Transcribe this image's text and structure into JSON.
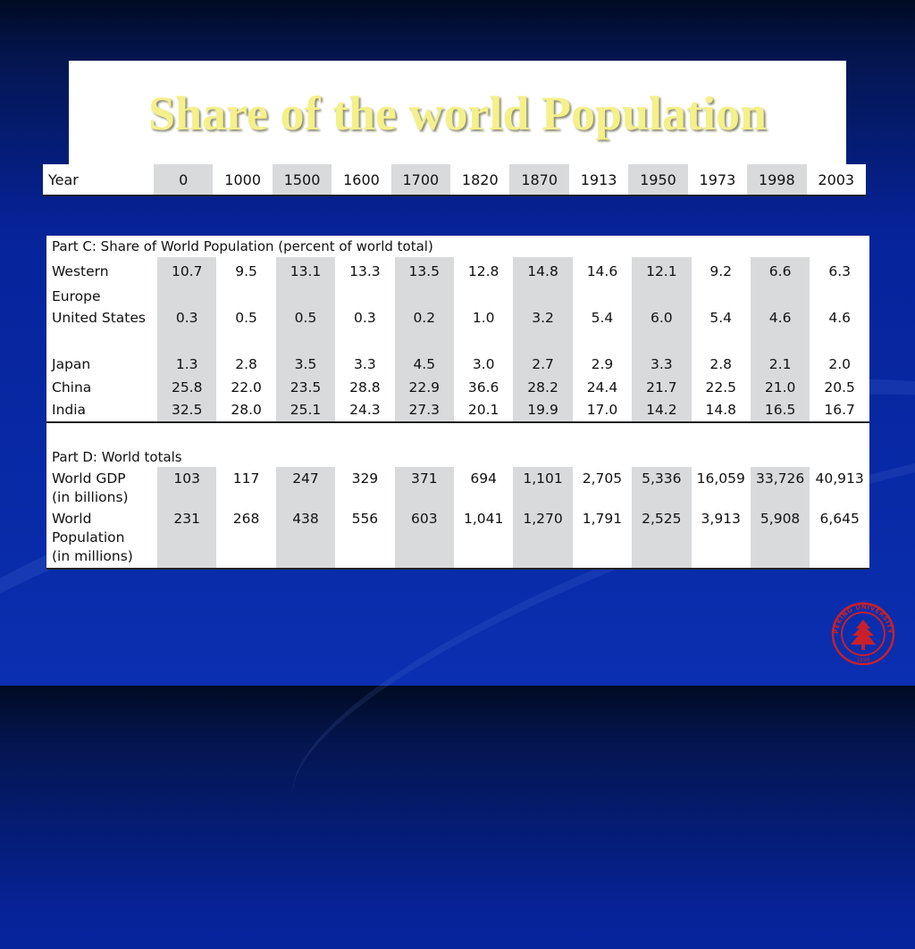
{
  "slide": {
    "title": "Share of  the world Population"
  },
  "header_row": {
    "label": "Year",
    "years": [
      "0",
      "1000",
      "1500",
      "1600",
      "1700",
      "1820",
      "1870",
      "1913",
      "1950",
      "1973",
      "1998",
      "2003"
    ]
  },
  "part_c": {
    "heading": "Part C: Share of World Population (percent of world total)",
    "rows": [
      {
        "label": "Western",
        "label2": "Europe",
        "values": [
          "10.7",
          "9.5",
          "13.1",
          "13.3",
          "13.5",
          "12.8",
          "14.8",
          "14.6",
          "12.1",
          "9.2",
          "6.6",
          "6.3"
        ]
      },
      {
        "label": "United States",
        "values": [
          "0.3",
          "0.5",
          "0.5",
          "0.3",
          "0.2",
          "1.0",
          "3.2",
          "5.4",
          "6.0",
          "5.4",
          "4.6",
          "4.6"
        ]
      },
      {
        "label": "Japan",
        "values": [
          "1.3",
          "2.8",
          "3.5",
          "3.3",
          "4.5",
          "3.0",
          "2.7",
          "2.9",
          "3.3",
          "2.8",
          "2.1",
          "2.0"
        ]
      },
      {
        "label": "China",
        "values": [
          "25.8",
          "22.0",
          "23.5",
          "28.8",
          "22.9",
          "36.6",
          "28.2",
          "24.4",
          "21.7",
          "22.5",
          "21.0",
          "20.5"
        ]
      },
      {
        "label": "India",
        "values": [
          "32.5",
          "28.0",
          "25.1",
          "24.3",
          "27.3",
          "20.1",
          "19.9",
          "17.0",
          "14.2",
          "14.8",
          "16.5",
          "16.7"
        ]
      }
    ]
  },
  "part_d": {
    "heading": "Part D: World totals",
    "rows": [
      {
        "label": "World GDP",
        "label2": "(in billions)",
        "values": [
          "103",
          "117",
          "247",
          "329",
          "371",
          "694",
          "1,101",
          "2,705",
          "5,336",
          "16,059",
          "33,726",
          "40,913"
        ]
      },
      {
        "label": "World",
        "label2": "Population",
        "label3": "(in millions)",
        "values": [
          "231",
          "268",
          "438",
          "556",
          "603",
          "1,041",
          "1,270",
          "1,791",
          "2,525",
          "3,913",
          "5,908",
          "6,645"
        ]
      }
    ]
  },
  "logo": {
    "name": "peking-university-seal",
    "text": "PEKING UNIVERSITY",
    "year": "1898",
    "color": "#c8202a"
  }
}
